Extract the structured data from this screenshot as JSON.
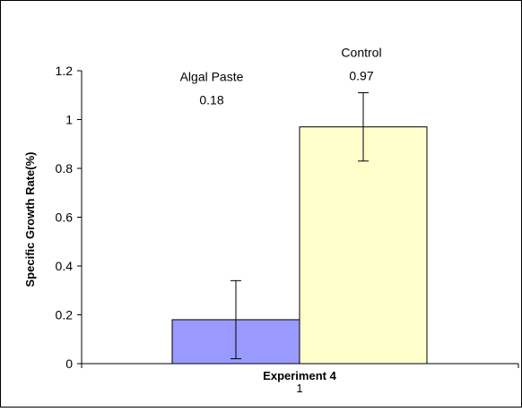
{
  "chart_data": {
    "type": "bar",
    "categories": [
      "1"
    ],
    "series": [
      {
        "name": "Algal Paste",
        "values": [
          0.18
        ],
        "value_label": "0.18",
        "error": [
          0.16
        ],
        "color": "#9999ff"
      },
      {
        "name": "Control",
        "values": [
          0.97
        ],
        "value_label": "0.97",
        "error": [
          0.14
        ],
        "color": "#ffffcc"
      }
    ],
    "xlabel": "Experiment 4",
    "ylabel": "Specific Growth Rate(%)",
    "ylim": [
      0,
      1.2
    ],
    "yticks": [
      "0",
      "0.2",
      "0.4",
      "0.6",
      "0.8",
      "1",
      "1.2"
    ],
    "grid": false,
    "legend": "none"
  },
  "colors": {
    "border": "#000000",
    "axis": "#000000",
    "background": "#ffffff"
  }
}
